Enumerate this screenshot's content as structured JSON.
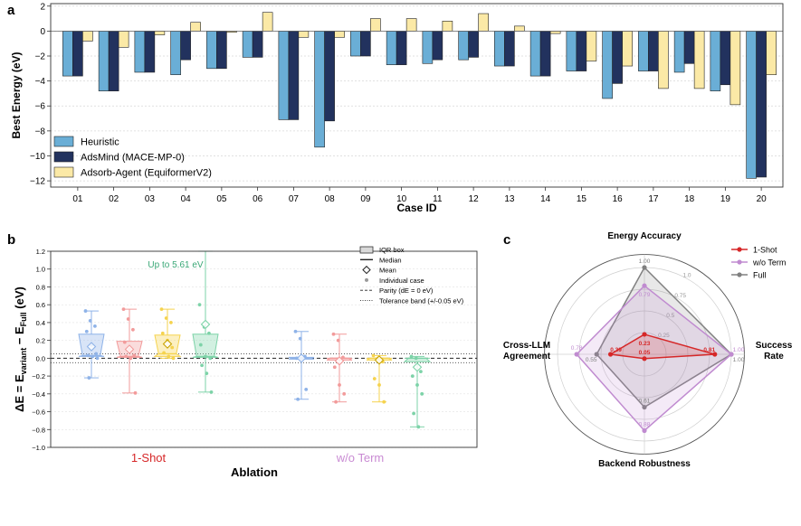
{
  "panels": {
    "a": "a",
    "b": "b",
    "c": "c"
  },
  "chart_data": [
    {
      "type": "bar",
      "panel": "a",
      "xlabel": "Case ID",
      "ylabel": "Best Energy (eV)",
      "ylim": [
        -12.5,
        2.2
      ],
      "yticks": [
        2,
        0,
        -2,
        -4,
        -6,
        -8,
        -10,
        -12
      ],
      "categories": [
        "01",
        "02",
        "03",
        "04",
        "05",
        "06",
        "07",
        "08",
        "09",
        "10",
        "11",
        "12",
        "13",
        "14",
        "15",
        "16",
        "17",
        "18",
        "19",
        "20"
      ],
      "legend_position": "lower-left",
      "series": [
        {
          "name": "Heuristic",
          "color": "#6aaed6",
          "values": [
            -3.6,
            -4.8,
            -3.3,
            -3.5,
            -3.0,
            -2.1,
            -7.1,
            -9.3,
            -2.0,
            -2.7,
            -2.6,
            -2.3,
            -2.8,
            -3.6,
            -3.2,
            -5.4,
            -3.2,
            -3.3,
            -4.8,
            -11.8
          ]
        },
        {
          "name": "AdsMind (MACE-MP-0)",
          "color": "#22325e",
          "values": [
            -3.6,
            -4.8,
            -3.3,
            -2.3,
            -3.0,
            -2.1,
            -7.1,
            -7.2,
            -2.0,
            -2.7,
            -2.3,
            -2.1,
            -2.8,
            -3.6,
            -3.2,
            -4.2,
            -3.2,
            -2.6,
            -4.3,
            -11.7
          ]
        },
        {
          "name": "Adsorb-Agent (EquiformerV2)",
          "color": "#fbe9a6",
          "values": [
            -0.8,
            -1.3,
            -0.3,
            0.7,
            -0.1,
            1.5,
            -0.5,
            -0.5,
            1.0,
            1.0,
            0.8,
            1.4,
            0.4,
            -0.2,
            -2.4,
            -2.8,
            -4.6,
            -4.6,
            -5.9,
            -3.5
          ]
        }
      ]
    },
    {
      "type": "box",
      "panel": "b",
      "xlabel": "Ablation",
      "ylabel_parts": {
        "delta": "ΔE = E",
        "sub1": "variant",
        "minus": " − E",
        "sub2": "Full",
        "unit": " (eV)"
      },
      "ylim": [
        -1.0,
        1.2
      ],
      "yticks": [
        1.2,
        1.0,
        0.8,
        0.6,
        0.4,
        0.2,
        0.0,
        -0.2,
        -0.4,
        -0.6,
        -0.8,
        -1.0
      ],
      "groups": [
        {
          "label": "1-Shot",
          "color": "#d62728"
        },
        {
          "label": "w/o Term",
          "color": "#c98bd3"
        }
      ],
      "annotation": "Up to 5.61 eV",
      "annotation_color": "#3aa776",
      "legend": [
        "IQR box",
        "Median",
        "Mean",
        "Individual case",
        "Parity (dE = 0 eV)",
        "Tolerance band (+/-0.05 eV)"
      ],
      "boxes": [
        {
          "group": "1-Shot",
          "color": "#8fb3e8",
          "q1": 0.02,
          "median": 0.03,
          "q3": 0.27,
          "min": -0.22,
          "max": 0.53,
          "mean": 0.13,
          "points": [
            0.53,
            0.42,
            0.36,
            0.3,
            0.15,
            0.05,
            0.03,
            0.02,
            0.0,
            -0.22
          ]
        },
        {
          "group": "1-Shot",
          "color": "#f29b9b",
          "q1": 0.01,
          "median": 0.02,
          "q3": 0.19,
          "min": -0.39,
          "max": 0.55,
          "mean": 0.1,
          "points": [
            0.55,
            0.44,
            0.32,
            0.18,
            0.1,
            0.03,
            0.02,
            0.0,
            -0.39
          ]
        },
        {
          "group": "1-Shot",
          "color": "#f5d34f",
          "q1": 0.02,
          "median": 0.05,
          "q3": 0.26,
          "min": 0.0,
          "max": 0.55,
          "mean": 0.16,
          "points": [
            0.55,
            0.45,
            0.4,
            0.28,
            0.2,
            0.12,
            0.06,
            0.02,
            0.0
          ]
        },
        {
          "group": "1-Shot",
          "color": "#7dd3a8",
          "q1": 0.01,
          "median": 0.02,
          "q3": 0.27,
          "min": -0.38,
          "max": 1.2,
          "mean": 0.38,
          "points": [
            0.6,
            0.35,
            0.28,
            0.15,
            0.02,
            0.0,
            -0.08,
            -0.17,
            -0.38
          ]
        },
        {
          "group": "w/o Term",
          "color": "#8fb3e8",
          "q1": -0.01,
          "median": 0.0,
          "q3": 0.01,
          "min": -0.46,
          "max": 0.3,
          "mean": 0.0,
          "points": [
            0.3,
            0.22,
            0.02,
            0.0,
            -0.02,
            -0.35,
            -0.46
          ]
        },
        {
          "group": "w/o Term",
          "color": "#f29b9b",
          "q1": -0.02,
          "median": 0.0,
          "q3": 0.0,
          "min": -0.49,
          "max": 0.27,
          "mean": -0.03,
          "points": [
            0.27,
            0.2,
            0.01,
            -0.1,
            -0.3,
            -0.4,
            -0.49
          ]
        },
        {
          "group": "w/o Term",
          "color": "#f5d34f",
          "q1": -0.02,
          "median": 0.0,
          "q3": 0.0,
          "min": -0.49,
          "max": 0.03,
          "mean": -0.02,
          "points": [
            0.03,
            0.0,
            -0.04,
            -0.23,
            -0.3,
            -0.49
          ]
        },
        {
          "group": "w/o Term",
          "color": "#7dd3a8",
          "q1": -0.04,
          "median": 0.0,
          "q3": 0.0,
          "min": -0.77,
          "max": 0.02,
          "mean": -0.1,
          "points": [
            0.02,
            0.0,
            -0.15,
            -0.2,
            -0.3,
            -0.4,
            -0.62,
            -0.77
          ]
        }
      ]
    },
    {
      "type": "radar",
      "panel": "c",
      "axes": [
        "Energy Accuracy",
        "Success Rate",
        "Backend Robustness",
        "Cross-LLM Agreement"
      ],
      "rings": [
        "0.25",
        "0.5",
        "0.75",
        "1.0"
      ],
      "range": [
        0,
        1
      ],
      "legend_position": "top-right",
      "series": [
        {
          "name": "1-Shot",
          "color": "#d62728",
          "values": [
            0.23,
            0.81,
            0.05,
            0.39
          ],
          "labels": [
            "0.23",
            "0.81",
            "0.05",
            "0.39"
          ]
        },
        {
          "name": "w/o Term",
          "color": "#c08bd0",
          "values": [
            0.79,
            1.0,
            0.88,
            0.78
          ],
          "labels": [
            "0.79",
            "1.00",
            "0.88",
            "0.78"
          ]
        },
        {
          "name": "Full",
          "color": "#808080",
          "values": [
            1.0,
            1.0,
            0.61,
            0.55
          ],
          "labels": [
            "1.00",
            "1.00",
            "0.61",
            "0.55"
          ]
        }
      ]
    }
  ]
}
